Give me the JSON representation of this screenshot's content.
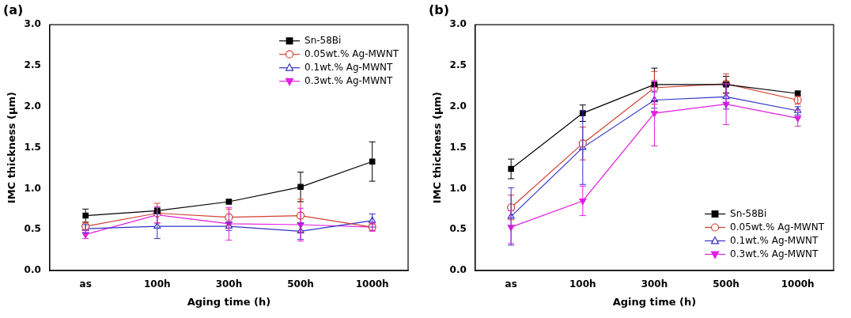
{
  "chart_data": [
    {
      "type": "line",
      "title": "(a)",
      "categories": [
        "as",
        "100h",
        "300h",
        "500h",
        "1000h"
      ],
      "x_label": "Aging time (h)",
      "y_label": "IMC thickness (μm)",
      "ylim": [
        0,
        3
      ],
      "yticks": [
        {
          "value": 0,
          "label": "0.0"
        },
        0.5,
        {
          "value": 1,
          "label": "1.0"
        },
        1.5,
        {
          "value": 2,
          "label": "2.0"
        },
        2.5,
        {
          "value": 3,
          "label": "3.0"
        }
      ],
      "grid": false,
      "legend": "upper right",
      "series": [
        {
          "name": "Sn-58Bi",
          "color": "#000000",
          "marker": "square",
          "values": [
            0.67,
            0.73,
            0.84,
            1.02,
            1.33
          ],
          "errors": [
            0.08,
            0.03,
            0.02,
            0.18,
            0.24
          ]
        },
        {
          "name": "0.05wt.% Ag-MWNT",
          "color": "#d04030",
          "marker": "circle_open",
          "values": [
            0.54,
            0.7,
            0.65,
            0.67,
            0.53
          ],
          "errors": [
            0.05,
            0.12,
            0.1,
            0.2,
            0.04
          ]
        },
        {
          "name": "0.1wt.% Ag-MWNT",
          "color": "#3030c8",
          "marker": "triangle_open",
          "values": [
            0.51,
            0.54,
            0.54,
            0.48,
            0.61
          ],
          "errors": [
            0.05,
            0.15,
            0.05,
            0.1,
            0.08
          ]
        },
        {
          "name": "0.3wt.% Ag-MWNT",
          "color": "#e020e0",
          "marker": "triangle_down",
          "values": [
            0.44,
            0.68,
            0.57,
            0.56,
            0.53
          ],
          "errors": [
            0.05,
            0.1,
            0.2,
            0.2,
            0.05
          ]
        }
      ]
    },
    {
      "type": "line",
      "title": "(b)",
      "categories": [
        "as",
        "100h",
        "300h",
        "500h",
        "1000h"
      ],
      "x_label": "Aging time (h)",
      "y_label": "IMC thickness (μm)",
      "ylim": [
        0,
        3
      ],
      "yticks": [
        {
          "value": 0,
          "label": "0.0"
        },
        0.5,
        {
          "value": 1,
          "label": "1.0"
        },
        1.5,
        {
          "value": 2,
          "label": "2.0"
        },
        2.5,
        {
          "value": 3,
          "label": "3.0"
        }
      ],
      "grid": false,
      "legend": "lower right",
      "series": [
        {
          "name": "Sn-58Bi",
          "color": "#000000",
          "marker": "square",
          "values": [
            1.24,
            1.92,
            2.27,
            2.27,
            2.16
          ],
          "errors": [
            0.12,
            0.1,
            0.2,
            0.1,
            0.03
          ]
        },
        {
          "name": "0.05wt.% Ag-MWNT",
          "color": "#d04030",
          "marker": "circle_open",
          "values": [
            0.77,
            1.55,
            2.23,
            2.28,
            2.08
          ],
          "errors": [
            0.15,
            0.2,
            0.2,
            0.12,
            0.05
          ]
        },
        {
          "name": "0.1wt.% Ag-MWNT",
          "color": "#3030c8",
          "marker": "triangle_open",
          "values": [
            0.66,
            1.5,
            2.08,
            2.12,
            1.95
          ],
          "errors": [
            0.35,
            0.45,
            0.1,
            0.15,
            0.05
          ]
        },
        {
          "name": "0.3wt.% Ag-MWNT",
          "color": "#e020e0",
          "marker": "triangle_down",
          "values": [
            0.53,
            0.85,
            1.92,
            2.03,
            1.86
          ],
          "errors": [
            0.2,
            0.18,
            0.4,
            0.25,
            0.1
          ]
        }
      ]
    }
  ]
}
